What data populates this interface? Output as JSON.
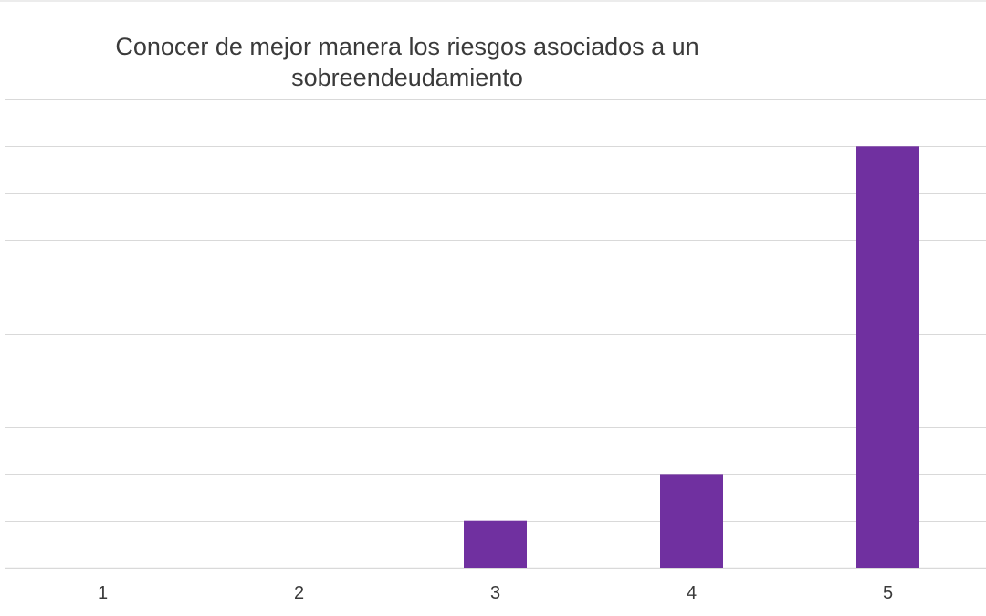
{
  "chart_data": {
    "type": "bar",
    "title": "Conocer de mejor manera los riesgos asociados a un\nsobreendeudamiento",
    "categories": [
      "1",
      "2",
      "3",
      "4",
      "5"
    ],
    "values": [
      0,
      0,
      1,
      2,
      9
    ],
    "ylim": [
      0,
      10
    ],
    "grid": true,
    "legend": "none",
    "bar_color": "#7030a0",
    "grid_color": "#d9d9d9"
  }
}
